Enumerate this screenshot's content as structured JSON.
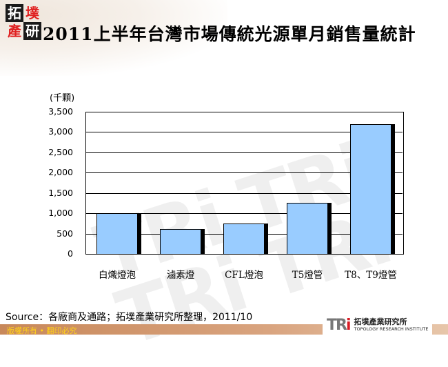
{
  "logo": {
    "tl": "拓",
    "tr": "墣",
    "bl": "產",
    "br": "研"
  },
  "header": {
    "title": "2011上半年台灣市場傳統光源單月銷售量統計"
  },
  "chart_data": {
    "type": "bar",
    "title": "2011上半年台灣市場傳統光源單月銷售量統計",
    "xlabel": "",
    "ylabel": "(千顆)",
    "categories": [
      "白熾燈泡",
      "滷素燈",
      "CFL燈泡",
      "T5燈管",
      "T8、T9燈管"
    ],
    "values": [
      1000,
      620,
      750,
      1250,
      3190
    ],
    "ylim": [
      0,
      3500
    ],
    "yticks": [
      "0",
      "500",
      "1,000",
      "1,500",
      "2,000",
      "2,500",
      "3,000",
      "3,500"
    ],
    "grid": true,
    "legend": "none",
    "bar_color": "#99ccff"
  },
  "footer": {
    "source": "Source：各廠商及通路；拓墣產業研究所整理，2011/10",
    "copyright": "版權所有 • 翻印必究",
    "brand_mark": "TRi",
    "brand_cn": "拓墣產業研究所",
    "brand_en": "TOPOLOGY RESEARCH INSTITUTE"
  }
}
